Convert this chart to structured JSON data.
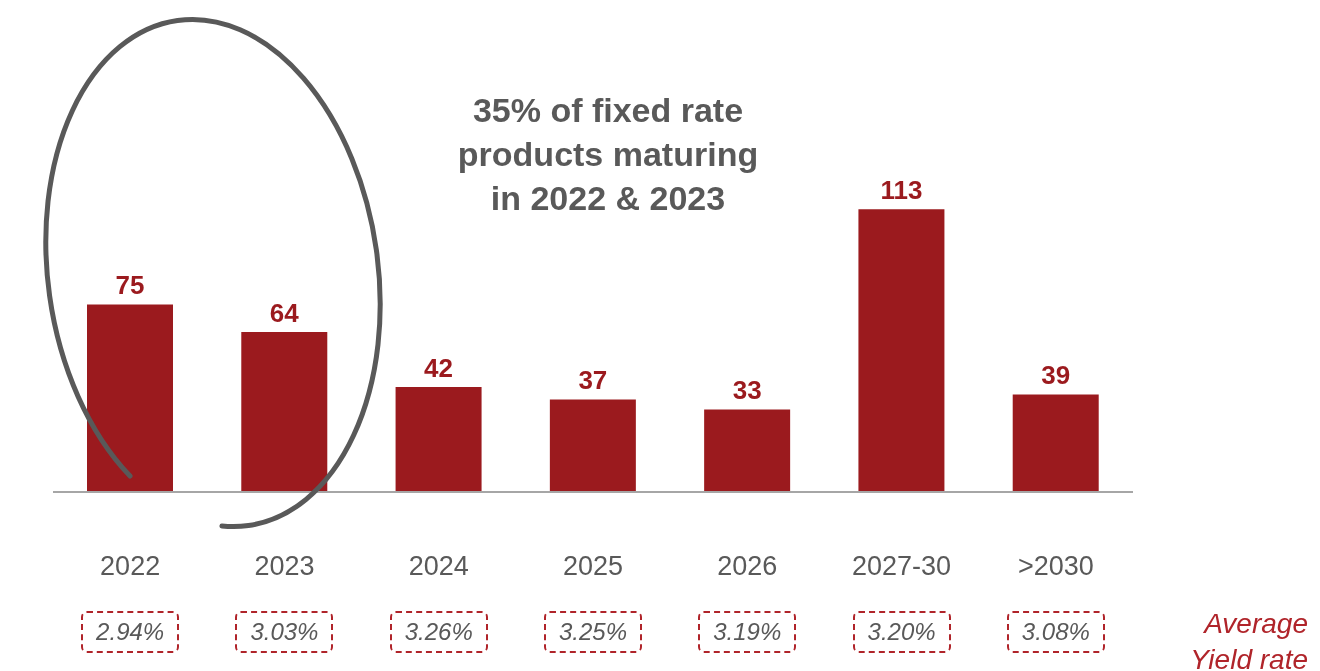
{
  "chart_data": {
    "type": "bar",
    "categories": [
      "2022",
      "2023",
      "2024",
      "2025",
      "2026",
      "2027-30",
      ">2030"
    ],
    "values": [
      75,
      64,
      42,
      37,
      33,
      113,
      39
    ],
    "color": "#9b1a1e",
    "data_labels": true,
    "annotations": [
      "35% of fixed rate products maturing in 2022 & 2023",
      "2.94%",
      "3.03%",
      "3.26%",
      "3.25%",
      "3.19%",
      "3.20%",
      "3.08%",
      "Average Yield rate"
    ]
  }
}
